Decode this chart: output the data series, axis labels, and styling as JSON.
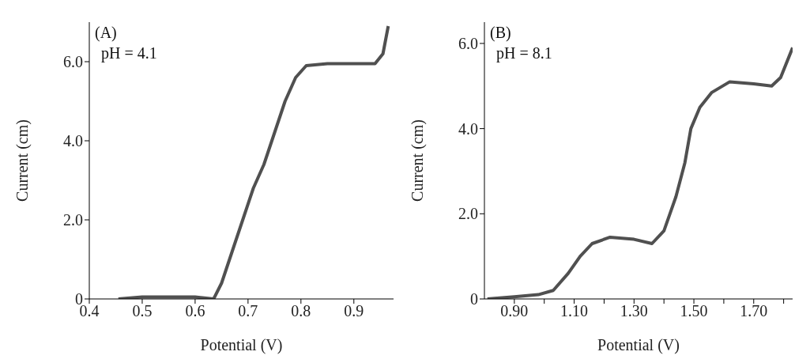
{
  "chart_data": [
    {
      "type": "line",
      "xlabel": "Potential (V)",
      "ylabel": "Current (cm)",
      "annotations": [
        "(A)",
        "pH = 4.1"
      ],
      "xlim": [
        0.4,
        0.975
      ],
      "xticks": [
        0.4,
        0.5,
        0.6,
        0.7,
        0.8,
        0.9
      ],
      "ylim": [
        0,
        7
      ],
      "yticks": [
        0,
        {
          "value": 2,
          "label": "2.0"
        },
        {
          "value": 4,
          "label": "4.0"
        },
        {
          "value": 6,
          "label": "6.0"
        }
      ],
      "grid": false,
      "legend": false,
      "marker": "none",
      "series": [
        {
          "color": "#505050",
          "x": [
            0.455,
            0.5,
            0.55,
            0.6,
            0.635,
            0.65,
            0.67,
            0.69,
            0.71,
            0.73,
            0.75,
            0.77,
            0.79,
            0.81,
            0.85,
            0.9,
            0.94,
            0.955,
            0.965
          ],
          "values": [
            0,
            0.05,
            0.05,
            0.05,
            0,
            0.4,
            1.2,
            2.0,
            2.8,
            3.4,
            4.2,
            5.0,
            5.6,
            5.9,
            5.95,
            5.95,
            5.95,
            6.2,
            6.9
          ]
        }
      ]
    },
    {
      "type": "line",
      "xlabel": "Potential (V)",
      "ylabel": "Current (cm)",
      "annotations": [
        "(B)",
        "pH =  8.1"
      ],
      "xlim": [
        0.8,
        1.83
      ],
      "xticks": [
        {
          "value": 0.9,
          "label": "0.90"
        },
        {
          "value": 1.0,
          "label": null
        },
        {
          "value": 1.1,
          "label": "1.10"
        },
        {
          "value": 1.2,
          "label": null
        },
        {
          "value": 1.3,
          "label": "1.30"
        },
        {
          "value": 1.4,
          "label": null
        },
        {
          "value": 1.5,
          "label": "1.50"
        },
        {
          "value": 1.6,
          "label": null
        },
        {
          "value": 1.7,
          "label": "1.70"
        },
        {
          "value": 1.8,
          "label": null
        }
      ],
      "ylim": [
        0,
        6.5
      ],
      "yticks": [
        0,
        {
          "value": 2,
          "label": "2.0"
        },
        {
          "value": 4,
          "label": "4.0"
        },
        {
          "value": 6,
          "label": "6.0"
        }
      ],
      "grid": false,
      "legend": false,
      "marker": "none",
      "series": [
        {
          "color": "#505050",
          "x": [
            0.81,
            0.9,
            0.98,
            1.03,
            1.08,
            1.12,
            1.16,
            1.22,
            1.3,
            1.36,
            1.4,
            1.44,
            1.47,
            1.49,
            1.52,
            1.56,
            1.62,
            1.7,
            1.76,
            1.79,
            1.83
          ],
          "values": [
            0,
            0.05,
            0.1,
            0.2,
            0.6,
            1.0,
            1.3,
            1.45,
            1.4,
            1.3,
            1.6,
            2.4,
            3.2,
            4.0,
            4.5,
            4.85,
            5.1,
            5.05,
            5.0,
            5.2,
            5.9
          ]
        }
      ]
    }
  ]
}
